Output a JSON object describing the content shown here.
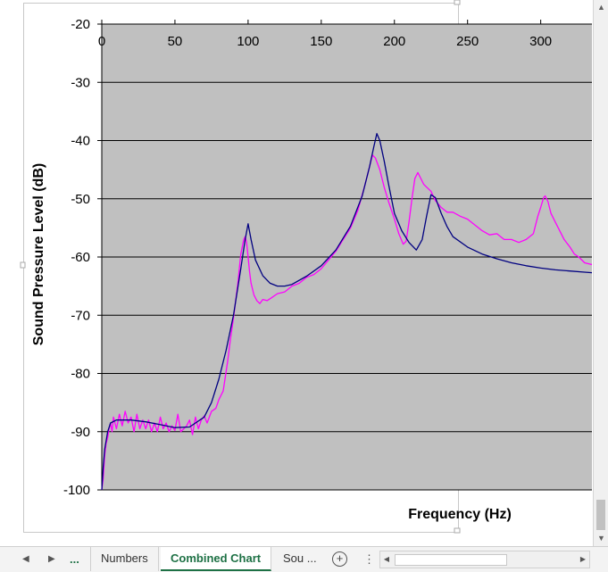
{
  "chart_data": {
    "type": "line",
    "title": "",
    "xlabel": "Frequency (Hz)",
    "ylabel": "Sound Pressure Level (dB)",
    "xlim": [
      0,
      335
    ],
    "ylim": [
      -100,
      -20
    ],
    "x_ticks": [
      "0",
      "50",
      "100",
      "150",
      "200",
      "250",
      "300"
    ],
    "y_ticks": [
      "-20",
      "-30",
      "-40",
      "-50",
      "-60",
      "-70",
      "-80",
      "-90",
      "-100"
    ],
    "grid": "horizontal",
    "legend": "none",
    "background": "#c0c0c0",
    "series": [
      {
        "color": "#000080",
        "x": [
          0,
          1,
          2,
          4,
          6,
          10,
          15,
          20,
          30,
          40,
          50,
          60,
          70,
          75,
          80,
          85,
          90,
          95,
          98,
          100,
          102,
          105,
          110,
          115,
          120,
          125,
          130,
          140,
          150,
          160,
          170,
          178,
          183,
          186,
          188,
          190,
          193,
          196,
          200,
          205,
          210,
          215,
          219,
          222,
          225,
          228,
          232,
          236,
          240,
          250,
          260,
          270,
          280,
          290,
          300,
          310,
          320,
          330,
          335
        ],
        "y": [
          -100,
          -96,
          -93,
          -90,
          -88.5,
          -88,
          -88,
          -88,
          -88.3,
          -88.8,
          -89.3,
          -89.2,
          -87.5,
          -85,
          -81,
          -76,
          -70,
          -62,
          -57,
          -54.3,
          -57,
          -60.5,
          -63.2,
          -64.5,
          -65,
          -65,
          -64.7,
          -63.3,
          -61.5,
          -58.8,
          -54.7,
          -49.5,
          -44.5,
          -41,
          -38.8,
          -40,
          -43.5,
          -47.5,
          -52.5,
          -55.5,
          -57.5,
          -58.8,
          -57,
          -53,
          -49.3,
          -49.8,
          -52.5,
          -54.8,
          -56.5,
          -58.3,
          -59.5,
          -60.3,
          -61,
          -61.5,
          -61.9,
          -62.2,
          -62.4,
          -62.6,
          -62.7
        ]
      },
      {
        "color": "#ff00ff",
        "x": [
          0,
          1,
          2,
          3,
          4,
          5,
          6,
          7,
          8,
          10,
          12,
          14,
          16,
          18,
          20,
          22,
          24,
          26,
          28,
          30,
          32,
          34,
          36,
          38,
          40,
          42,
          44,
          46,
          48,
          50,
          52,
          54,
          56,
          58,
          60,
          62,
          64,
          66,
          68,
          70,
          72,
          75,
          78,
          80,
          83,
          86,
          88,
          90,
          93,
          95,
          97,
          98,
          99,
          100,
          101,
          102,
          104,
          106,
          108,
          110,
          113,
          116,
          120,
          125,
          130,
          135,
          140,
          145,
          150,
          155,
          160,
          165,
          170,
          175,
          180,
          183,
          185,
          187,
          190,
          193,
          196,
          200,
          203,
          206,
          208,
          210,
          212,
          214,
          216,
          218,
          220,
          222,
          225,
          228,
          232,
          236,
          240,
          245,
          250,
          255,
          260,
          265,
          270,
          275,
          280,
          285,
          290,
          295,
          298,
          300,
          302,
          303,
          305,
          307,
          310,
          313,
          316,
          320,
          323,
          326,
          330,
          335
        ],
        "y": [
          -100,
          -98,
          -94,
          -92,
          -91,
          -89.5,
          -88.5,
          -90,
          -87.5,
          -89.5,
          -87,
          -89,
          -86.5,
          -88.5,
          -87.5,
          -90,
          -87,
          -89.5,
          -88,
          -89.5,
          -88,
          -90,
          -88.5,
          -90,
          -87.5,
          -89.5,
          -88.5,
          -90,
          -89,
          -89.8,
          -87,
          -90,
          -89.5,
          -89,
          -88,
          -90.5,
          -87.5,
          -89.5,
          -88,
          -87.3,
          -88.5,
          -86.5,
          -86,
          -84.5,
          -83,
          -78,
          -74,
          -70.5,
          -64.5,
          -59.5,
          -57,
          -56.5,
          -57.5,
          -60,
          -62.5,
          -64.5,
          -66.5,
          -67.5,
          -68,
          -67.3,
          -67.5,
          -67,
          -66.3,
          -66,
          -65,
          -64.5,
          -63.5,
          -63,
          -62,
          -60.5,
          -59,
          -57,
          -55,
          -52,
          -47.5,
          -44.5,
          -42.5,
          -43,
          -45,
          -48,
          -50.5,
          -53.5,
          -56,
          -57.8,
          -57.3,
          -54,
          -50,
          -46.5,
          -45.5,
          -46.5,
          -47.5,
          -48,
          -48.7,
          -50.3,
          -51.5,
          -52.3,
          -52.3,
          -53,
          -53.5,
          -54.5,
          -55.5,
          -56.2,
          -56,
          -57,
          -57,
          -57.5,
          -57,
          -56,
          -53,
          -51.5,
          -49.8,
          -49.5,
          -50.5,
          -52.5,
          -54,
          -55.5,
          -57,
          -58.3,
          -59.5,
          -60,
          -61,
          -61.3
        ]
      }
    ]
  },
  "tabs": {
    "more": "...",
    "items": [
      {
        "label": "Numbers"
      },
      {
        "label": "Combined Chart"
      },
      {
        "label": "Sou ..."
      }
    ],
    "add_icon": "plus-circle-icon",
    "menu_icon": "vertical-dots-icon"
  }
}
